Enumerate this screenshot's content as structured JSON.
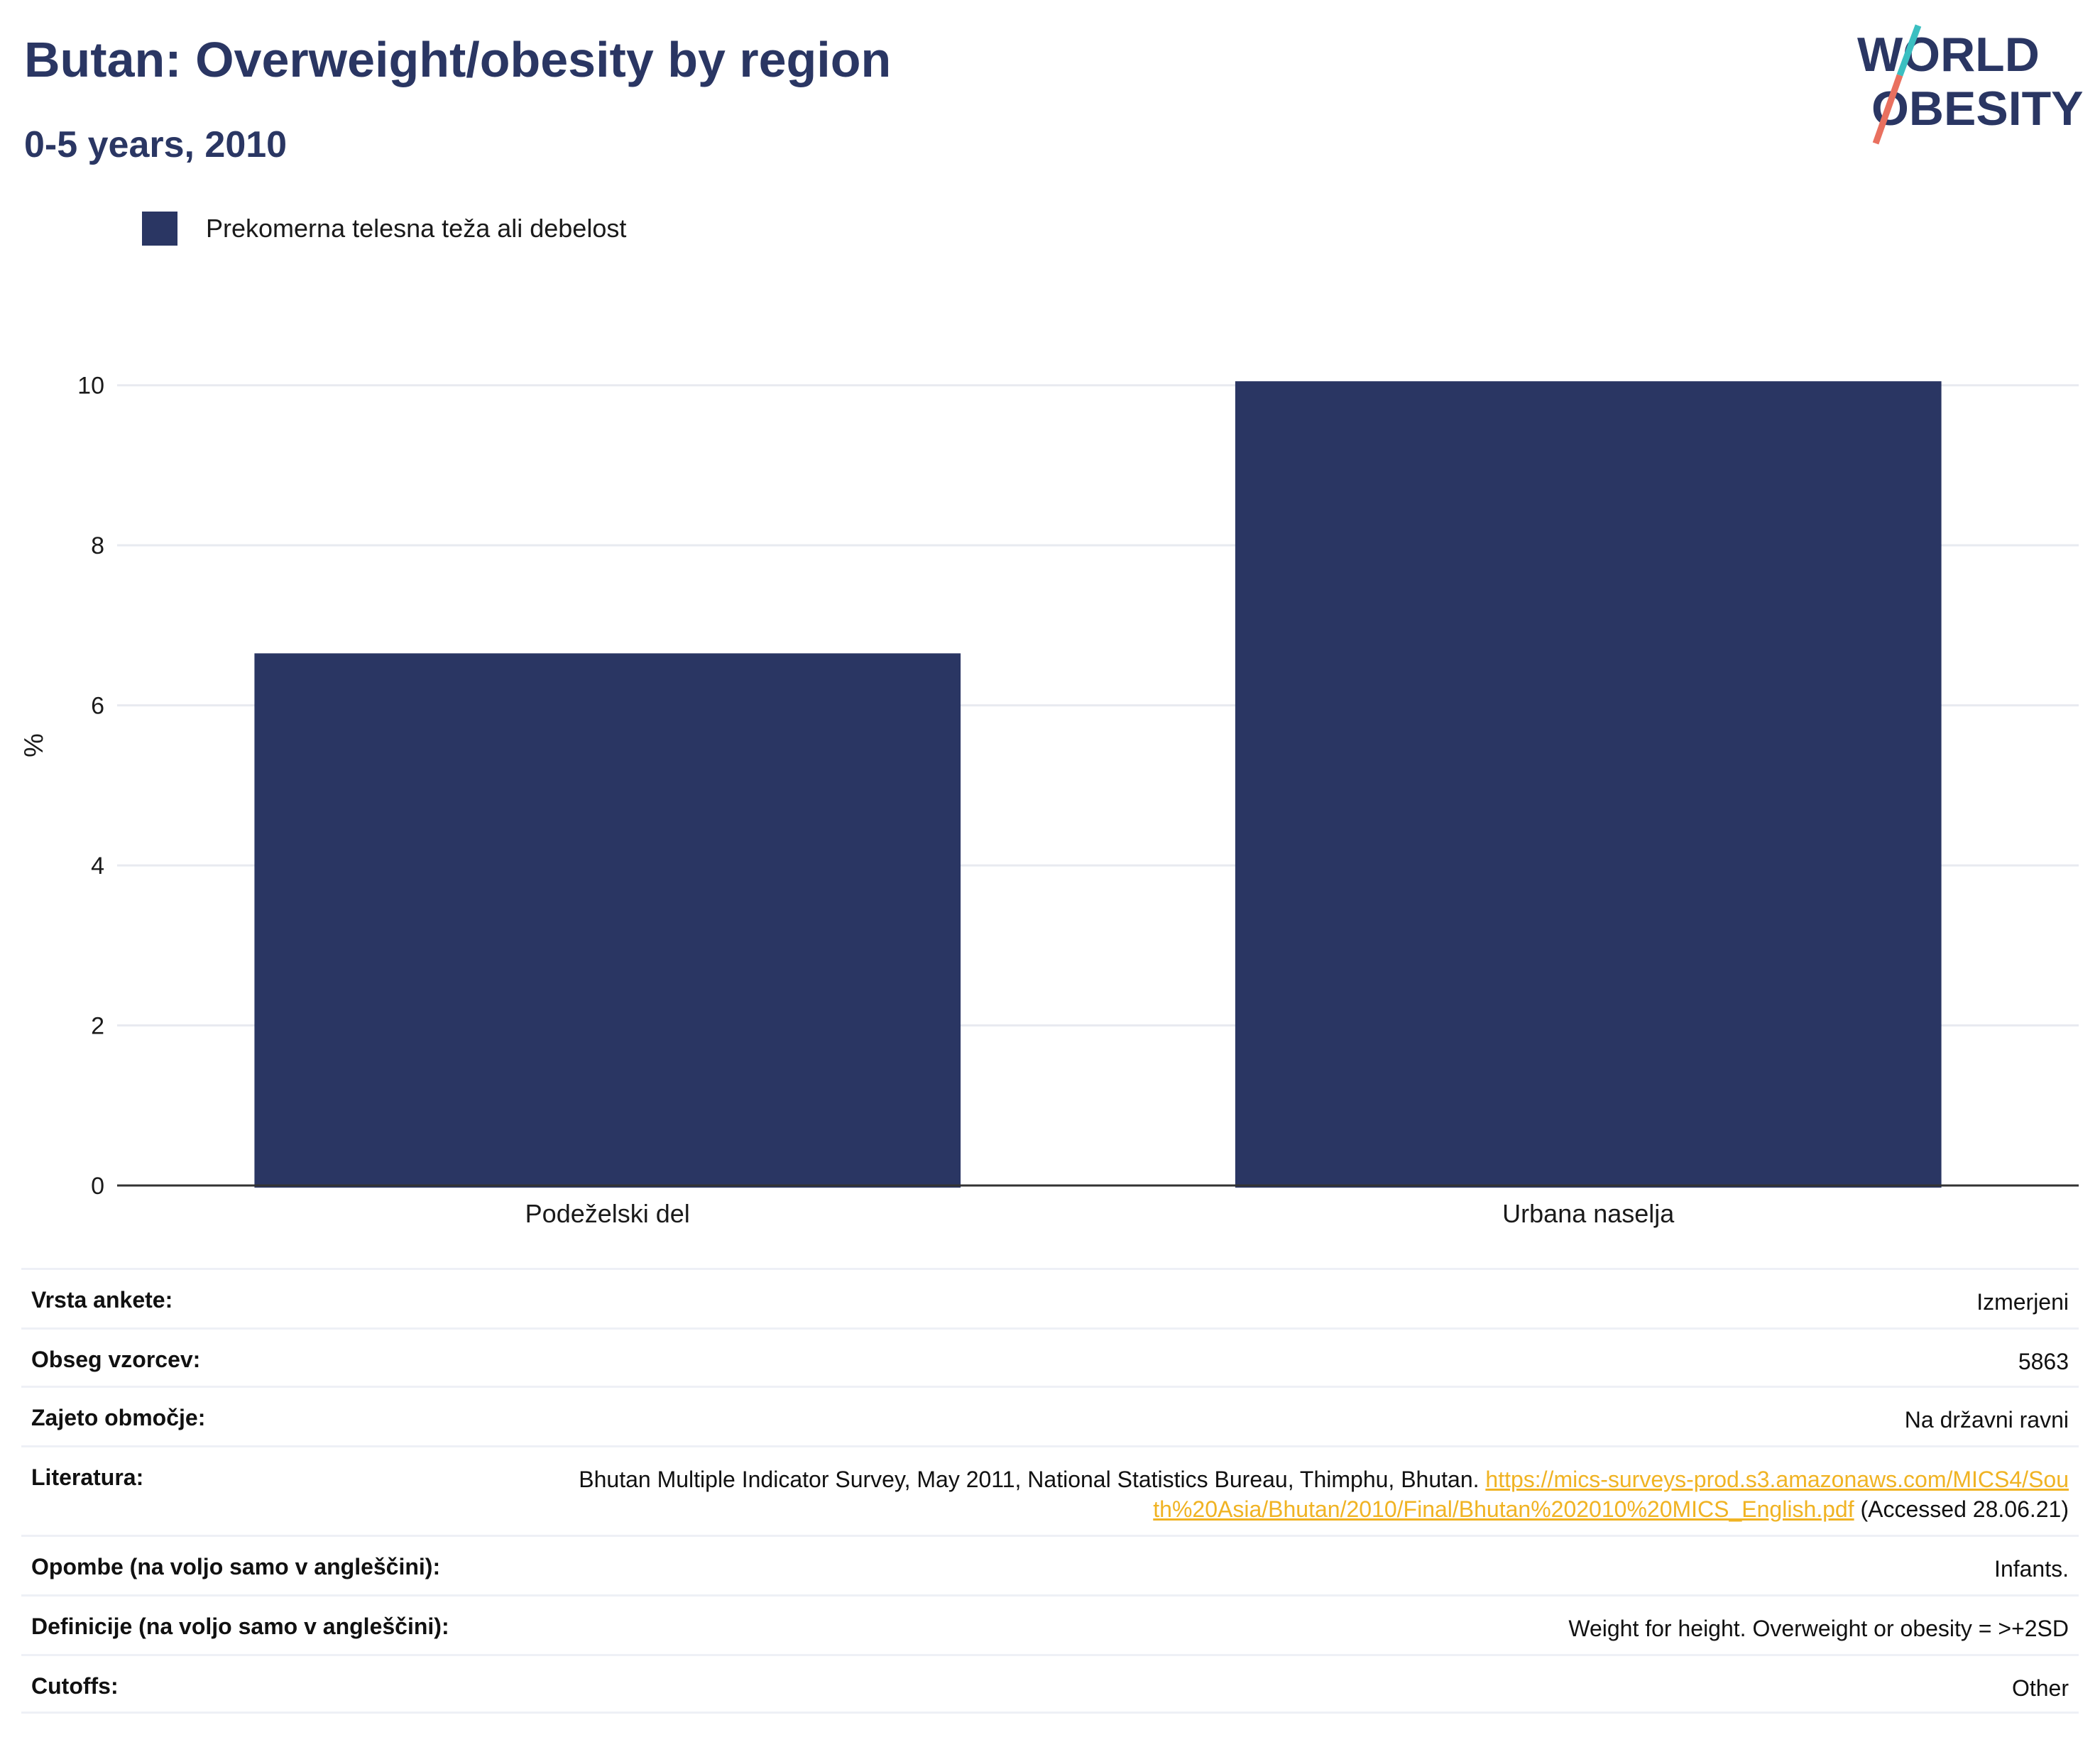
{
  "header": {
    "title": "Butan: Overweight/obesity by region",
    "subtitle": "0-5 years, 2010"
  },
  "logo": {
    "line1": "WORLD",
    "line2": "OBESITY",
    "name": "world-obesity-logo"
  },
  "colors": {
    "bar": "#2a3663",
    "text": "#2a3663",
    "link": "#f0b323",
    "logo_slash_top": "#3bbfc1",
    "logo_slash_bottom": "#e9705f"
  },
  "chart_data": {
    "type": "bar",
    "categories": [
      "Podeželski del",
      "Urbana naselja"
    ],
    "series": [
      {
        "name": "Prekomerna telesna teža ali debelost",
        "values": [
          6.65,
          10.05
        ]
      }
    ],
    "ylabel": "%",
    "xlabel": "",
    "ylim": [
      0,
      11
    ],
    "yticks": [
      0,
      2,
      4,
      6,
      8,
      10
    ],
    "grid": true,
    "legend_position": "top-left"
  },
  "meta": {
    "rows": [
      {
        "label": "Vrsta ankete:",
        "value": "Izmerjeni"
      },
      {
        "label": "Obseg vzorcev:",
        "value": "5863"
      },
      {
        "label": "Zajeto območje:",
        "value": "Na državni ravni"
      },
      {
        "label": "Literatura:",
        "value": "Bhutan Multiple Indicator Survey, May 2011, National Statistics Bureau, Thimphu, Bhutan.",
        "link": "https://mics-surveys-prod.s3.amazonaws.com/MICS4/South%20Asia/Bhutan/2010/Final/Bhutan%202010%20MICS_English.pdf",
        "suffix": "(Accessed 28.06.21)"
      },
      {
        "label": "Opombe (na voljo samo v angleščini):",
        "value": "Infants."
      },
      {
        "label": "Definicije (na voljo samo v angleščini):",
        "value": "Weight for height. Overweight or obesity = >+2SD"
      },
      {
        "label": "Cutoffs:",
        "value": "Other"
      }
    ]
  }
}
